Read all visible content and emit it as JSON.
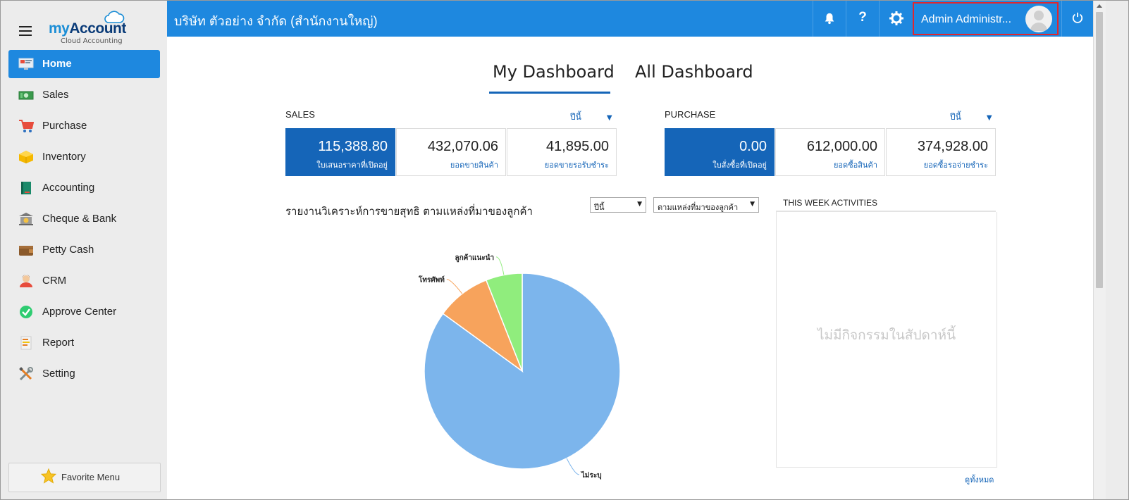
{
  "sidebar": {
    "logo": {
      "my": "my",
      "account": "Account",
      "subtitle": "Cloud Accounting"
    },
    "items": [
      {
        "label": "Home"
      },
      {
        "label": "Sales"
      },
      {
        "label": "Purchase"
      },
      {
        "label": "Inventory"
      },
      {
        "label": "Accounting"
      },
      {
        "label": "Cheque & Bank"
      },
      {
        "label": "Petty Cash"
      },
      {
        "label": "CRM"
      },
      {
        "label": "Approve Center"
      },
      {
        "label": "Report"
      },
      {
        "label": "Setting"
      }
    ],
    "active_item": "Home",
    "favorite_label": "Favorite Menu"
  },
  "header": {
    "company": "บริษัท ตัวอย่าง จำกัด (สำนักงานใหญ่)",
    "help_label": "?",
    "user_name": "Admin Administr..."
  },
  "tabs": [
    {
      "label": "My Dashboard",
      "active": true
    },
    {
      "label": "All Dashboard",
      "active": false
    }
  ],
  "sales": {
    "title": "SALES",
    "period": "ปีนี้",
    "kpis": [
      {
        "value": "115,388.80",
        "label": "ใบเสนอราคาที่เปิดอยู่"
      },
      {
        "value": "432,070.06",
        "label": "ยอดขายสินค้า"
      },
      {
        "value": "41,895.00",
        "label": "ยอดขายรอรับชำระ"
      }
    ]
  },
  "purchase": {
    "title": "PURCHASE",
    "period": "ปีนี้",
    "kpis": [
      {
        "value": "0.00",
        "label": "ใบสั่งซื้อที่เปิดอยู่"
      },
      {
        "value": "612,000.00",
        "label": "ยอดซื้อสินค้า"
      },
      {
        "value": "374,928.00",
        "label": "ยอดซื้อรอจ่ายชำระ"
      }
    ]
  },
  "report": {
    "title": "รายงานวิเคราะห์การขายสุทธิ ตามแหล่งที่มาของลูกค้า",
    "period_select": "ปีนี้",
    "source_select": "ตามแหล่งที่มาของลูกค้า"
  },
  "chart_data": {
    "type": "pie",
    "categories": [
      "ไม่ระบุ",
      "โทรศัพท์",
      "ลูกค้าแนะนำ"
    ],
    "values": [
      85,
      9,
      6
    ],
    "colors": [
      "#7cb5ec",
      "#f7a35c",
      "#90ed7d"
    ]
  },
  "activities": {
    "title": "THIS WEEK ACTIVITIES",
    "empty_text": "ไม่มีกิจกรรมในสัปดาห์นี้",
    "view_all": "ดูทั้งหมด"
  },
  "colors": {
    "primary": "#1e88df",
    "kpi_primary": "#1565b8",
    "highlight": "#e0262e"
  }
}
